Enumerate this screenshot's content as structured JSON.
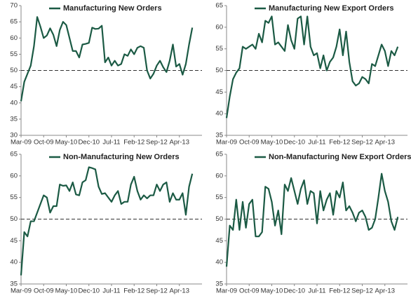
{
  "chart_data": [
    {
      "type": "line",
      "categories": [
        "Mar-09",
        null,
        null,
        null,
        null,
        null,
        null,
        "Oct-09",
        null,
        null,
        null,
        null,
        null,
        null,
        "May-10",
        null,
        null,
        null,
        null,
        null,
        null,
        "Dec-10",
        null,
        null,
        null,
        null,
        null,
        null,
        "Jul-11",
        null,
        null,
        null,
        null,
        null,
        null,
        "Feb-12",
        null,
        null,
        null,
        null,
        null,
        null,
        "Sep-12",
        null,
        null,
        null,
        null,
        null,
        null,
        "Apr-13",
        null,
        null,
        null,
        null
      ],
      "series": [
        {
          "name": "Manufacturing New Orders",
          "color": "#1b5a44",
          "values": [
            40.5,
            46.5,
            49,
            51.5,
            57.5,
            66.5,
            63.5,
            60,
            60.8,
            63,
            61,
            57.5,
            62.5,
            65,
            64,
            60,
            56,
            56,
            54,
            58,
            58.2,
            58.5,
            63.2,
            62.8,
            62.9,
            63.8,
            52.5,
            54,
            51.5,
            53,
            51.5,
            52,
            55,
            54.5,
            56.5,
            55,
            57,
            57.5,
            57,
            50,
            47.5,
            49,
            51.5,
            53,
            51,
            49.5,
            53,
            58,
            51.2,
            52,
            48.7,
            52,
            58,
            63.2
          ]
        }
      ],
      "ylim": [
        30,
        70
      ],
      "yticks": [
        30,
        35,
        40,
        45,
        50,
        55,
        60,
        65,
        70
      ],
      "ref_line": 50
    },
    {
      "type": "line",
      "categories": [
        "Mar-09",
        null,
        null,
        null,
        null,
        null,
        null,
        "Oct-09",
        null,
        null,
        null,
        null,
        null,
        null,
        "May-10",
        null,
        null,
        null,
        null,
        null,
        null,
        "Dec-10",
        null,
        null,
        null,
        null,
        null,
        null,
        "Jul-11",
        null,
        null,
        null,
        null,
        null,
        null,
        "Feb-12",
        null,
        null,
        null,
        null,
        null,
        null,
        "Sep-12",
        null,
        null,
        null,
        null,
        null,
        null,
        "Apr-13",
        null,
        null,
        null,
        null
      ],
      "series": [
        {
          "name": "Manufacturing New Export Orders",
          "color": "#1b5a44",
          "values": [
            39,
            44,
            48,
            49.5,
            50.5,
            55.5,
            55,
            55.5,
            56,
            55,
            58.5,
            56.5,
            61.5,
            61,
            62.5,
            56,
            56.5,
            55.5,
            54.5,
            60.5,
            57,
            55,
            62,
            62.5,
            56,
            62.5,
            55.5,
            53.5,
            54,
            50.5,
            53.5,
            50,
            52,
            53,
            55.5,
            59.5,
            53.5,
            59,
            52,
            47.5,
            46.5,
            47,
            48.5,
            48,
            47,
            51.5,
            51,
            53.5,
            56,
            54.5,
            51,
            54.5,
            53.5,
            55.5
          ]
        }
      ],
      "ylim": [
        35,
        65
      ],
      "yticks": [
        35,
        40,
        45,
        50,
        55,
        60,
        65
      ],
      "ref_line": 50
    },
    {
      "type": "line",
      "categories": [
        "Mar-09",
        null,
        null,
        null,
        null,
        null,
        null,
        "Oct-09",
        null,
        null,
        null,
        null,
        null,
        null,
        "May-10",
        null,
        null,
        null,
        null,
        null,
        null,
        "Dec-10",
        null,
        null,
        null,
        null,
        null,
        null,
        "Jul-11",
        null,
        null,
        null,
        null,
        null,
        null,
        "Feb-12",
        null,
        null,
        null,
        null,
        null,
        null,
        "Sep-12",
        null,
        null,
        null,
        null,
        null,
        null,
        "Apr-13",
        null,
        null,
        null,
        null
      ],
      "series": [
        {
          "name": "Non-Manufacturing New Orders",
          "color": "#1b5a44",
          "values": [
            37,
            47,
            46,
            49.5,
            49.5,
            51.5,
            53.5,
            55.5,
            55,
            51.5,
            53,
            53,
            58,
            57.7,
            57.8,
            56.5,
            58.5,
            55.7,
            55.5,
            58.5,
            59,
            62,
            61.8,
            61.5,
            57.5,
            55.8,
            56,
            55,
            54,
            55.5,
            56.5,
            53.5,
            54,
            54,
            58,
            59.8,
            56.5,
            54.5,
            55.5,
            54.8,
            55.5,
            55.5,
            58,
            56.5,
            58,
            58.5,
            54,
            56,
            54.5,
            54.5,
            56,
            51,
            57.5,
            60.5
          ]
        }
      ],
      "ylim": [
        35,
        65
      ],
      "yticks": [
        35,
        40,
        45,
        50,
        55,
        60,
        65
      ],
      "ref_line": 50
    },
    {
      "type": "line",
      "categories": [
        "Mar-09",
        null,
        null,
        null,
        null,
        null,
        null,
        "Oct-09",
        null,
        null,
        null,
        null,
        null,
        null,
        "May-10",
        null,
        null,
        null,
        null,
        null,
        null,
        "Dec-10",
        null,
        null,
        null,
        null,
        null,
        null,
        "Jul-11",
        null,
        null,
        null,
        null,
        null,
        null,
        "Feb-12",
        null,
        null,
        null,
        null,
        null,
        null,
        "Sep-12",
        null,
        null,
        null,
        null,
        null,
        null,
        "Apr-13",
        null,
        null,
        null,
        null
      ],
      "series": [
        {
          "name": "Non-Manufacturing New Export Orders",
          "color": "#1b5a44",
          "values": [
            39,
            48.5,
            47.5,
            54.5,
            47.5,
            54,
            48,
            53.5,
            54.5,
            46,
            46,
            47,
            57.5,
            57,
            54,
            48.5,
            52,
            46.5,
            58,
            56.5,
            59.5,
            56.5,
            53.5,
            57,
            59,
            53.5,
            56.5,
            56,
            49,
            56.5,
            52,
            54.5,
            56,
            51,
            56.5,
            55,
            58.5,
            52,
            53,
            51.5,
            49.5,
            51.5,
            52,
            50.5,
            47.5,
            48,
            50,
            55,
            60.5,
            56.5,
            54,
            49.5,
            47.5,
            50.5
          ]
        }
      ],
      "ylim": [
        35,
        65
      ],
      "yticks": [
        35,
        40,
        45,
        50,
        55,
        60,
        65
      ],
      "ref_line": 50
    }
  ]
}
